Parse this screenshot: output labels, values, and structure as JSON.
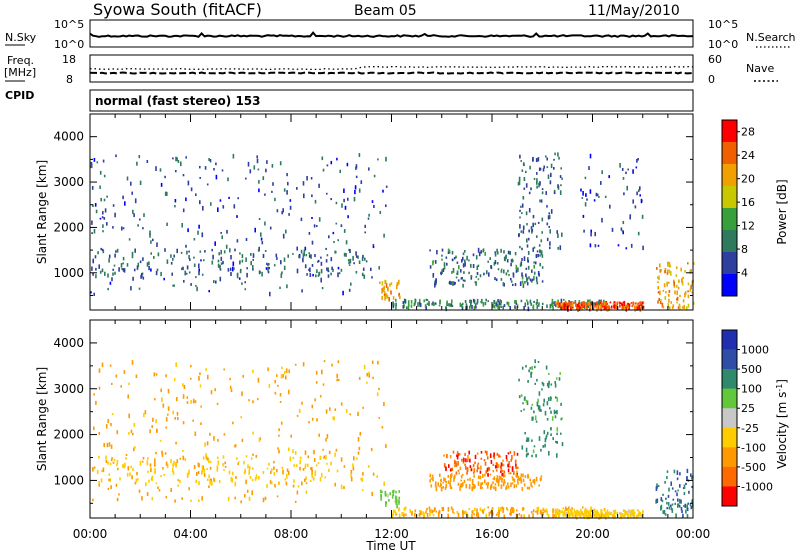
{
  "header": {
    "station": "Syowa South (fitACF)",
    "beam": "Beam 05",
    "date": "11/May/2010"
  },
  "noise_panel": {
    "left_label": "N.Sky",
    "left_ticks": [
      "10^5",
      "10^0"
    ],
    "right_ticks": [
      "10^5",
      "10^0"
    ],
    "right_label": "N.Search"
  },
  "freq_panel": {
    "left_label_1": "Freq.",
    "left_label_2": "[MHz]",
    "left_ticks": [
      "18",
      "8"
    ],
    "right_ticks": [
      "60",
      "0"
    ],
    "right_label": "Nave"
  },
  "cpid": {
    "label": "CPID",
    "value": "normal (fast stereo) 153"
  },
  "x_axis": {
    "label": "Time UT",
    "ticks": [
      "00:00",
      "04:00",
      "08:00",
      "12:00",
      "16:00",
      "20:00",
      "00:00"
    ]
  },
  "colors": {
    "power": [
      "#0000ff",
      "#2e3fa0",
      "#2f7a5e",
      "#38a03a",
      "#c8c800",
      "#f0a000",
      "#f06000",
      "#ff0000"
    ],
    "velocity": [
      "#ff0000",
      "#ff6a00",
      "#ff9900",
      "#ffcc00",
      "#c8c8c8",
      "#62c83a",
      "#2e8a6a",
      "#2e4ea8",
      "#1f2fb0"
    ]
  },
  "chart_data": [
    {
      "type": "heatmap",
      "title": "",
      "xlabel": "",
      "ylabel": "Slant Range [km]",
      "x_range_hours": [
        0,
        24
      ],
      "ylim": [
        180,
        4500
      ],
      "y_ticks": [
        "1000",
        "2000",
        "3000",
        "4000"
      ],
      "colorbar": {
        "label": "Power [dB]",
        "ticks": [
          "4",
          "8",
          "12",
          "16",
          "20",
          "24",
          "28"
        ],
        "range": [
          0,
          30
        ]
      },
      "regions": [
        {
          "t0": 0.0,
          "t1": 11.8,
          "r0": 500,
          "r1": 3600,
          "value": 7,
          "density": 0.1
        },
        {
          "t0": 0.0,
          "t1": 11.0,
          "r0": 900,
          "r1": 1500,
          "value": 8,
          "density": 0.14
        },
        {
          "t0": 11.5,
          "t1": 12.3,
          "r0": 400,
          "r1": 800,
          "value": 22,
          "density": 0.45
        },
        {
          "t0": 12.0,
          "t1": 20.5,
          "r0": 200,
          "r1": 380,
          "value": 10,
          "density": 0.3
        },
        {
          "t0": 13.5,
          "t1": 18.0,
          "r0": 700,
          "r1": 1500,
          "value": 9,
          "density": 0.35
        },
        {
          "t0": 17.0,
          "t1": 18.8,
          "r0": 1500,
          "r1": 3600,
          "value": 8,
          "density": 0.3
        },
        {
          "t0": 18.5,
          "t1": 22.0,
          "r0": 180,
          "r1": 330,
          "value": 27,
          "density": 0.75
        },
        {
          "t0": 19.5,
          "t1": 22.0,
          "r0": 1500,
          "r1": 3600,
          "value": 6,
          "density": 0.12
        },
        {
          "t0": 22.5,
          "t1": 24.0,
          "r0": 200,
          "r1": 1200,
          "value": 22,
          "density": 0.45
        }
      ]
    },
    {
      "type": "heatmap",
      "title": "",
      "xlabel": "Time UT",
      "ylabel": "Slant Range [km]",
      "x_range_hours": [
        0,
        24
      ],
      "ylim": [
        180,
        4500
      ],
      "y_ticks": [
        "1000",
        "2000",
        "3000",
        "4000"
      ],
      "colorbar": {
        "label": "Velocity [m s^-1]",
        "ticks": [
          "1000",
          "500",
          "100",
          "25",
          "-25",
          "-100",
          "-500",
          "-1000"
        ],
        "range": [
          -1200,
          1200
        ]
      },
      "regions": [
        {
          "t0": 0.0,
          "t1": 11.8,
          "r0": 500,
          "r1": 3600,
          "value": -150,
          "density": 0.1
        },
        {
          "t0": 0.0,
          "t1": 11.0,
          "r0": 900,
          "r1": 1500,
          "value": -80,
          "density": 0.14
        },
        {
          "t0": 11.5,
          "t1": 12.3,
          "r0": 400,
          "r1": 800,
          "value": 60,
          "density": 0.45
        },
        {
          "t0": 12.0,
          "t1": 20.5,
          "r0": 200,
          "r1": 380,
          "value": -120,
          "density": 0.3
        },
        {
          "t0": 14.0,
          "t1": 17.0,
          "r0": 1100,
          "r1": 1600,
          "value": -800,
          "density": 0.45
        },
        {
          "t0": 13.5,
          "t1": 18.0,
          "r0": 800,
          "r1": 1100,
          "value": -300,
          "density": 0.4
        },
        {
          "t0": 17.0,
          "t1": 18.8,
          "r0": 1500,
          "r1": 3600,
          "value": 150,
          "density": 0.3
        },
        {
          "t0": 18.5,
          "t1": 22.0,
          "r0": 180,
          "r1": 330,
          "value": -60,
          "density": 0.6
        },
        {
          "t0": 22.5,
          "t1": 24.0,
          "r0": 200,
          "r1": 1200,
          "value": 500,
          "density": 0.4
        }
      ]
    }
  ]
}
